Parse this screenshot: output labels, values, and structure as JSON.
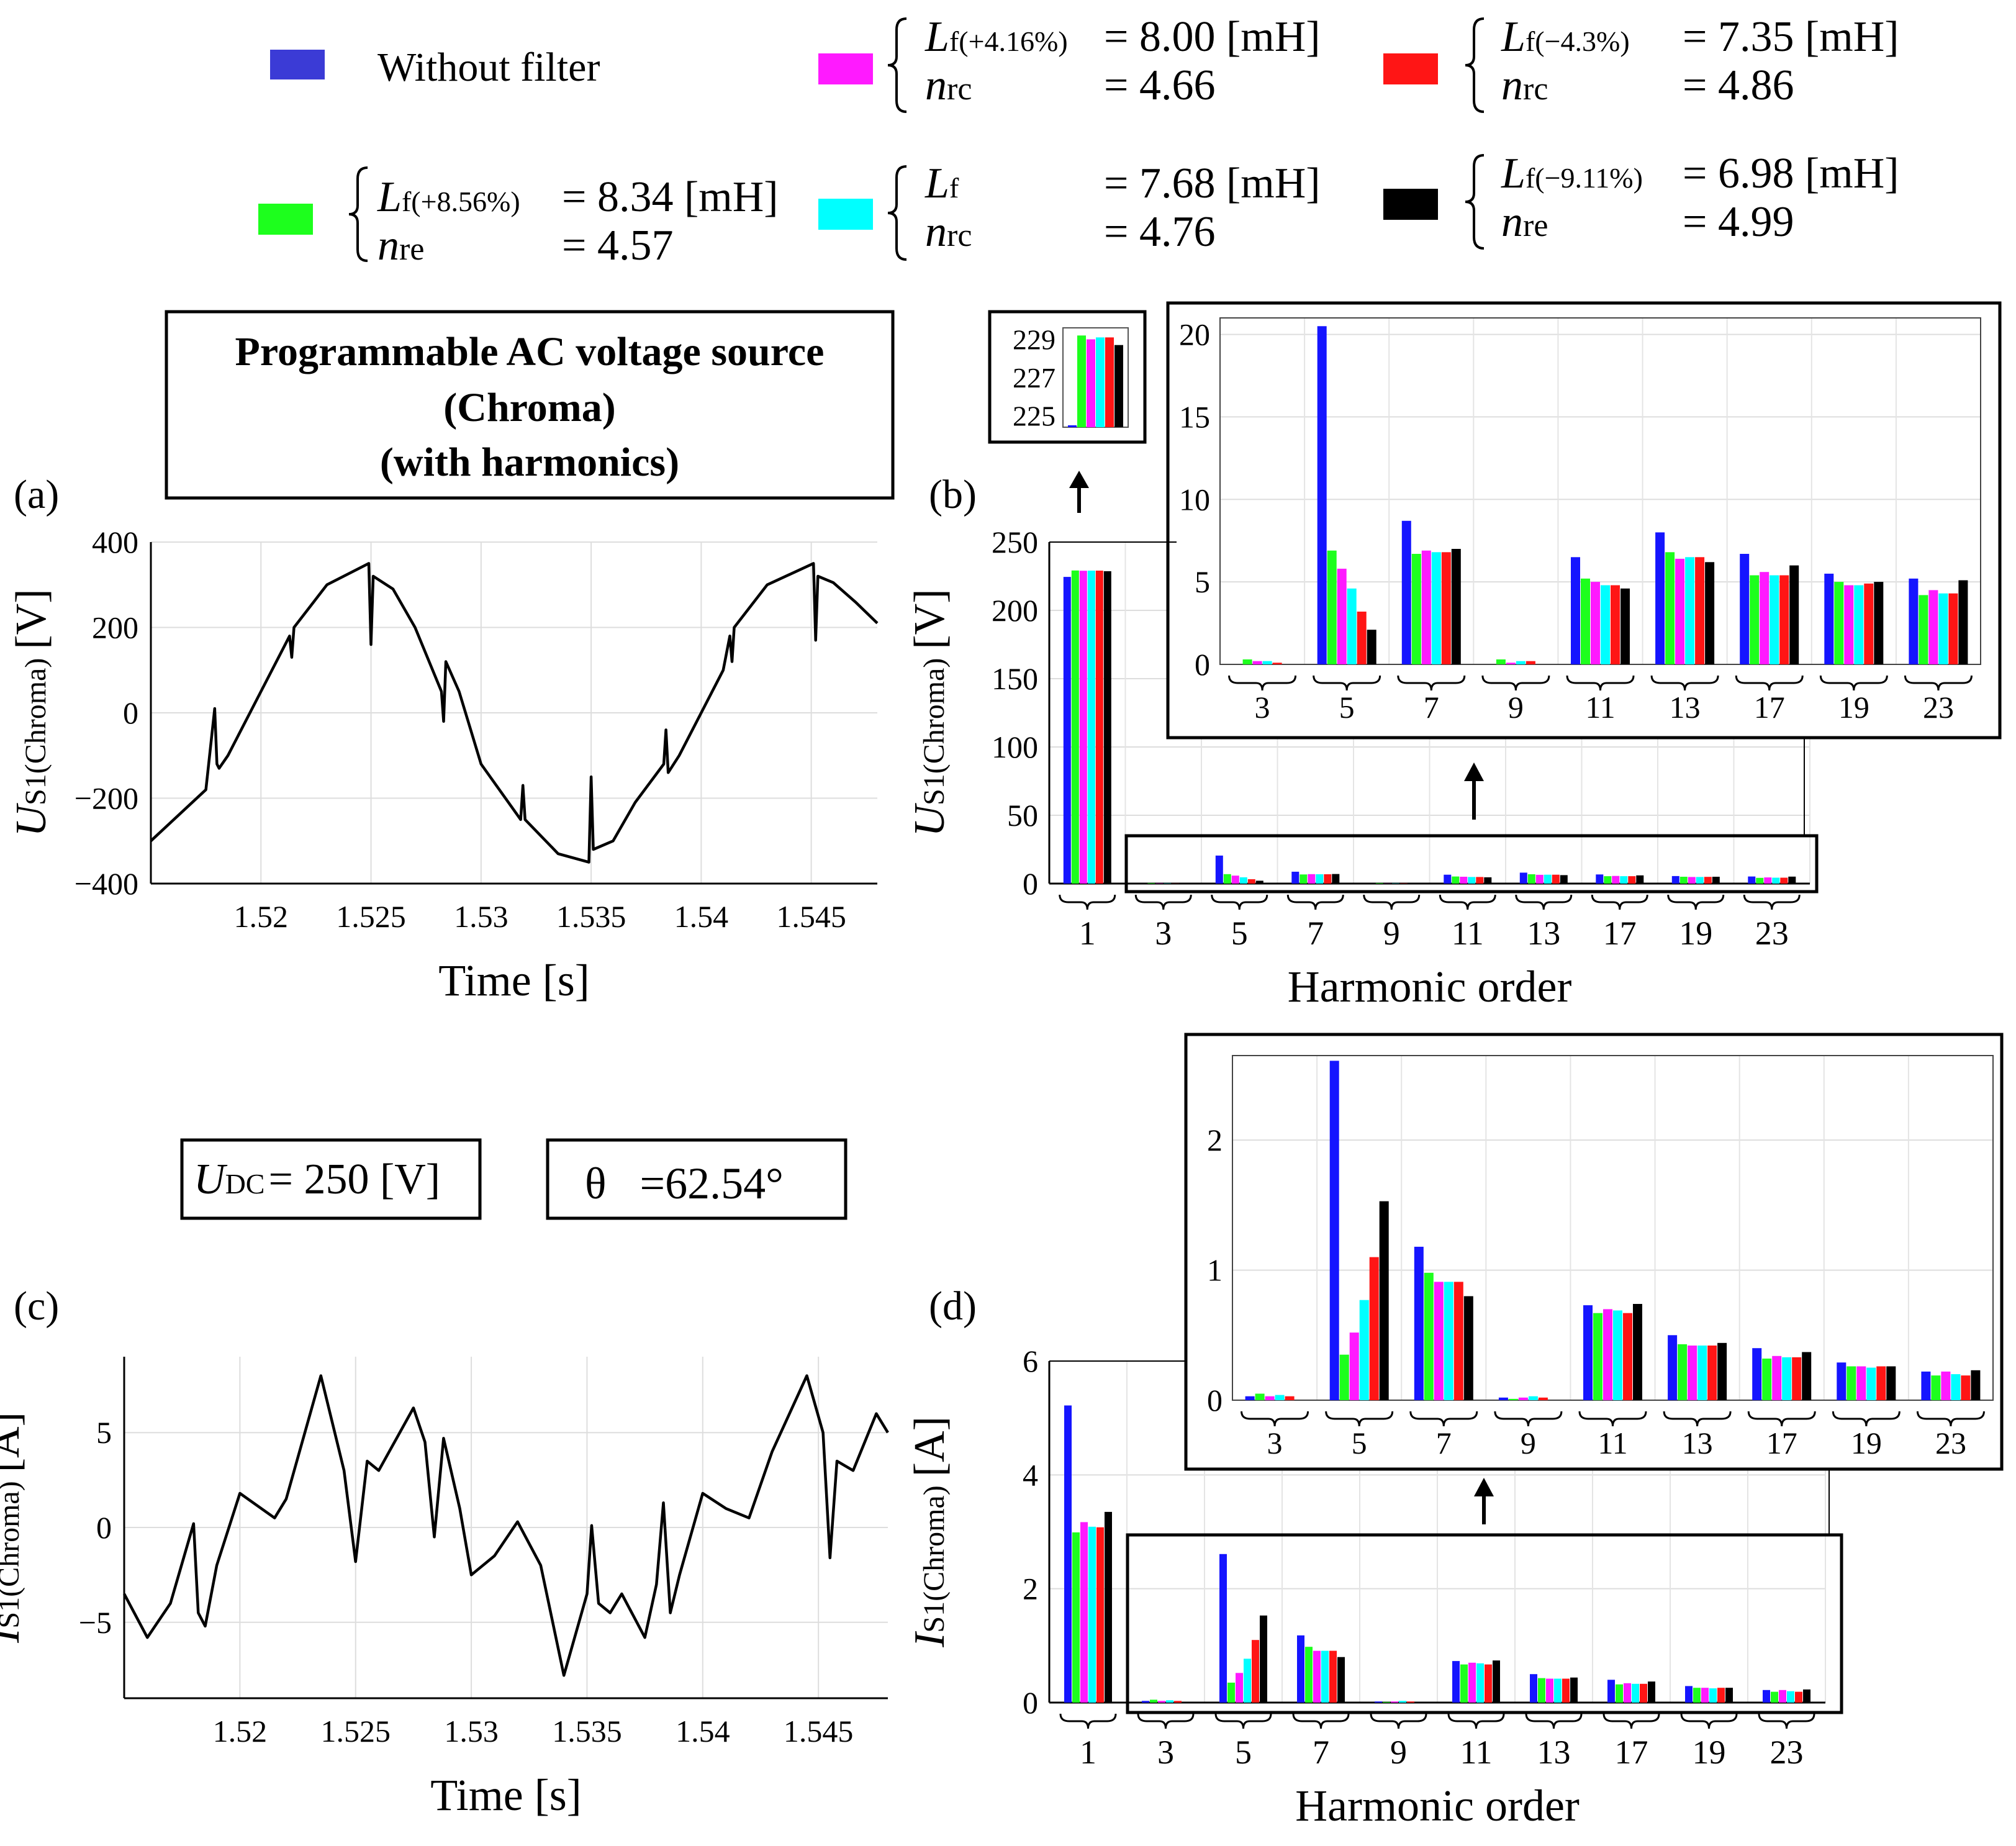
{
  "colors": {
    "without": "#1515ff",
    "green": "#1dff1d",
    "magenta": "#ff1aff",
    "cyan": "#00ffff",
    "red": "#ff1515",
    "black": "#000000"
  },
  "legend": {
    "without_filter": "Without filter",
    "entries": [
      {
        "key": "magenta",
        "L_sub": "f(+4.16%)",
        "L_val": "= 8.00 [mH]",
        "n_sub": "rc",
        "n_val": "= 4.66"
      },
      {
        "key": "red",
        "L_sub": "f(−4.3%)",
        "L_val": "= 7.35  [mH]",
        "n_sub": "rc",
        "n_val": "= 4.86"
      },
      {
        "key": "green",
        "L_sub": "f(+8.56%)",
        "L_val": "= 8.34 [mH]",
        "n_sub": "re",
        "n_val": "= 4.57"
      },
      {
        "key": "cyan",
        "L_sub": "f",
        "L_val": "= 7.68 [mH]",
        "n_sub": "rc",
        "n_val": "= 4.76"
      },
      {
        "key": "black",
        "L_sub": "f(−9.11%)",
        "L_val": "= 6.98  [mH]",
        "n_sub": "re",
        "n_val": "= 4.99"
      }
    ]
  },
  "source_box": [
    "Programmable AC voltage source",
    "(Chroma)",
    "(with harmonics)"
  ],
  "udc_box": {
    "sym": "U",
    "sub": "DC",
    "val": "= 250 [V]"
  },
  "theta_box": {
    "text": "θ   =62.54°"
  },
  "panel_labels": {
    "a": "(a)",
    "b": "(b)",
    "c": "(c)",
    "d": "(d)"
  },
  "zoom_small_ticks": [
    "229",
    "227",
    "225"
  ],
  "chart_data": [
    {
      "id": "a",
      "type": "line",
      "title": "",
      "xlabel": "Time [s]",
      "ylabel_sym": "U",
      "ylabel_sub": "S1(Chroma)",
      "ylabel_unit": "[V]",
      "xlim": [
        1.515,
        1.548
      ],
      "ylim": [
        -400,
        400
      ],
      "xticks": [
        1.52,
        1.525,
        1.53,
        1.535,
        1.54,
        1.545
      ],
      "xtick_labels": [
        "1.52",
        "1.525",
        "1.53",
        "1.535",
        "1.54",
        "1.545"
      ],
      "yticks": [
        -400,
        -200,
        0,
        200,
        400
      ],
      "ytick_labels": [
        "−400",
        "−200",
        "0",
        "200",
        "400"
      ],
      "x": [
        1.515,
        1.5175,
        1.5179,
        1.518,
        1.5181,
        1.5185,
        1.52,
        1.5213,
        1.5214,
        1.5215,
        1.523,
        1.5249,
        1.525,
        1.5251,
        1.526,
        1.527,
        1.5282,
        1.5283,
        1.5284,
        1.529,
        1.53,
        1.5318,
        1.5319,
        1.532,
        1.5335,
        1.5349,
        1.535,
        1.5351,
        1.536,
        1.537,
        1.5383,
        1.5384,
        1.5385,
        1.539,
        1.541,
        1.5413,
        1.5414,
        1.5415,
        1.543,
        1.5451,
        1.5452,
        1.5453,
        1.546,
        1.547,
        1.548
      ],
      "y": [
        -300,
        -180,
        10,
        -120,
        -130,
        -100,
        50,
        180,
        130,
        200,
        300,
        350,
        160,
        320,
        290,
        200,
        50,
        -20,
        120,
        50,
        -120,
        -250,
        -170,
        -250,
        -330,
        -350,
        -150,
        -320,
        -300,
        -210,
        -120,
        -40,
        -140,
        -100,
        100,
        180,
        120,
        200,
        300,
        350,
        170,
        320,
        305,
        260,
        210
      ]
    },
    {
      "id": "b",
      "type": "bar",
      "xlabel": "Harmonic order",
      "ylabel_sym": "U",
      "ylabel_sub": "S1(Chroma)",
      "ylabel_unit": "[V]",
      "ylim": [
        0,
        250
      ],
      "yticks": [
        0,
        50,
        100,
        150,
        200,
        250
      ],
      "ytick_labels": [
        "0",
        "50",
        "100",
        "150",
        "200",
        "250"
      ],
      "categories": [
        "1",
        "3",
        "5",
        "7",
        "9",
        "11",
        "13",
        "17",
        "19",
        "23"
      ],
      "series": [
        {
          "name": "Without filter",
          "values": [
            224.5,
            0,
            20.5,
            8.7,
            0,
            6.5,
            8.0,
            6.7,
            5.5,
            5.2
          ]
        },
        {
          "name": "Lf(+8.56%)",
          "values": [
            229.2,
            0.3,
            6.9,
            6.7,
            0.3,
            5.2,
            6.8,
            5.4,
            5.0,
            4.2
          ]
        },
        {
          "name": "Lf(+4.16%)",
          "values": [
            229.0,
            0.2,
            5.8,
            6.9,
            0.1,
            5.0,
            6.4,
            5.6,
            4.8,
            4.5
          ]
        },
        {
          "name": "Lf",
          "values": [
            229.1,
            0.2,
            4.6,
            6.8,
            0.2,
            4.8,
            6.5,
            5.4,
            4.8,
            4.3
          ]
        },
        {
          "name": "Lf(−4.3%)",
          "values": [
            229.1,
            0.1,
            3.2,
            6.8,
            0.2,
            4.8,
            6.5,
            5.4,
            4.9,
            4.3
          ]
        },
        {
          "name": "Lf(−9.11%)",
          "values": [
            228.7,
            0,
            2.1,
            7.0,
            0,
            4.6,
            6.2,
            6.0,
            5.0,
            5.1
          ]
        }
      ],
      "zoom": {
        "categories": [
          "3",
          "5",
          "7",
          "9",
          "11",
          "13",
          "17",
          "19",
          "23"
        ],
        "ylim": [
          0,
          21
        ],
        "yticks": [
          0,
          5,
          10,
          15,
          20
        ],
        "ytick_labels": [
          "0",
          "5",
          "10",
          "15",
          "20"
        ]
      }
    },
    {
      "id": "c",
      "type": "line",
      "xlabel": "Time [s]",
      "ylabel_sym": "I",
      "ylabel_sub": "S1(Chroma)",
      "ylabel_unit": "[A]",
      "xlim": [
        1.515,
        1.548
      ],
      "ylim": [
        -9,
        9
      ],
      "xticks": [
        1.52,
        1.525,
        1.53,
        1.535,
        1.54,
        1.545
      ],
      "xtick_labels": [
        "1.52",
        "1.525",
        "1.53",
        "1.535",
        "1.54",
        "1.545"
      ],
      "yticks": [
        -5,
        0,
        5
      ],
      "ytick_labels": [
        "−5",
        "0",
        "5"
      ],
      "x": [
        1.515,
        1.516,
        1.517,
        1.518,
        1.5182,
        1.5185,
        1.519,
        1.52,
        1.5215,
        1.522,
        1.5235,
        1.5245,
        1.525,
        1.5255,
        1.526,
        1.5275,
        1.528,
        1.5284,
        1.5288,
        1.5295,
        1.53,
        1.531,
        1.532,
        1.533,
        1.534,
        1.535,
        1.5352,
        1.5355,
        1.536,
        1.5365,
        1.5375,
        1.538,
        1.5383,
        1.5386,
        1.539,
        1.54,
        1.541,
        1.542,
        1.543,
        1.5445,
        1.5452,
        1.5455,
        1.5458,
        1.5465,
        1.5475,
        1.548
      ],
      "y": [
        -3.5,
        -5.8,
        -4.0,
        0.2,
        -4.5,
        -5.2,
        -2.0,
        1.8,
        0.5,
        1.5,
        8.0,
        3.0,
        -1.8,
        3.5,
        3.0,
        6.3,
        4.5,
        -0.5,
        4.7,
        1.0,
        -2.5,
        -1.5,
        0.3,
        -2.0,
        -7.8,
        -3.5,
        0.1,
        -4.0,
        -4.5,
        -3.5,
        -5.8,
        -3.0,
        1.3,
        -4.5,
        -2.5,
        1.8,
        1.0,
        0.5,
        4.0,
        8.0,
        5.0,
        -1.6,
        3.5,
        3.0,
        6.0,
        5.0
      ]
    },
    {
      "id": "d",
      "type": "bar",
      "xlabel": "Harmonic order",
      "ylabel_sym": "I",
      "ylabel_sub": "S1(Chroma)",
      "ylabel_unit": "[A]",
      "ylim": [
        0,
        6
      ],
      "yticks": [
        0,
        2,
        4,
        6
      ],
      "ytick_labels": [
        "0",
        "2",
        "4",
        "6"
      ],
      "categories": [
        "1",
        "3",
        "5",
        "7",
        "9",
        "11",
        "13",
        "17",
        "19",
        "23"
      ],
      "series": [
        {
          "name": "Without filter",
          "values": [
            5.22,
            0.03,
            2.61,
            1.18,
            0.02,
            0.73,
            0.5,
            0.4,
            0.29,
            0.22
          ]
        },
        {
          "name": "Lf(+8.56%)",
          "values": [
            2.99,
            0.05,
            0.35,
            0.98,
            0.01,
            0.67,
            0.43,
            0.32,
            0.26,
            0.19
          ]
        },
        {
          "name": "Lf(+4.16%)",
          "values": [
            3.17,
            0.03,
            0.52,
            0.91,
            0.02,
            0.7,
            0.42,
            0.34,
            0.26,
            0.22
          ]
        },
        {
          "name": "Lf",
          "values": [
            3.09,
            0.04,
            0.77,
            0.91,
            0.03,
            0.69,
            0.42,
            0.33,
            0.25,
            0.2
          ]
        },
        {
          "name": "Lf(−4.3%)",
          "values": [
            3.08,
            0.03,
            1.1,
            0.91,
            0.02,
            0.67,
            0.42,
            0.33,
            0.26,
            0.19
          ]
        },
        {
          "name": "Lf(−9.11%)",
          "values": [
            3.35,
            0.0,
            1.53,
            0.8,
            0.0,
            0.74,
            0.44,
            0.37,
            0.26,
            0.23
          ]
        }
      ],
      "zoom": {
        "categories": [
          "3",
          "5",
          "7",
          "9",
          "11",
          "13",
          "17",
          "19",
          "23"
        ],
        "ylim": [
          0,
          2.65
        ],
        "yticks": [
          0,
          1,
          2
        ],
        "ytick_labels": [
          "0",
          "1",
          "2"
        ]
      }
    }
  ]
}
